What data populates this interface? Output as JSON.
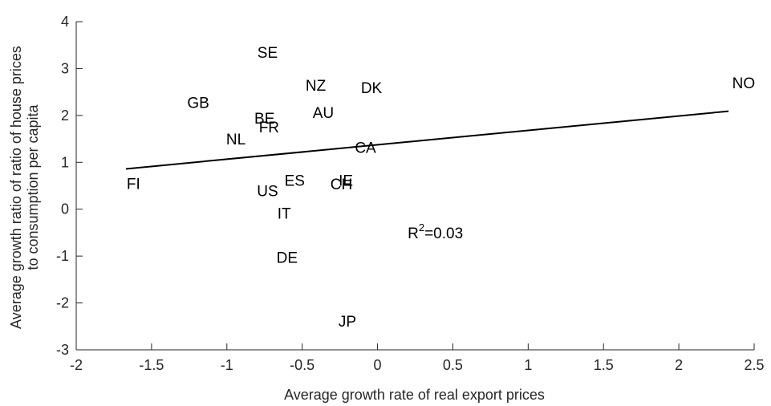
{
  "chart_data": {
    "type": "scatter",
    "title": "",
    "xlabel": "Average growth rate of real export prices",
    "ylabel_lines": [
      "Average growth ratio of ratio of house prices",
      "to consumption per capita"
    ],
    "xlim": [
      -2,
      2.5
    ],
    "ylim": [
      -3,
      4
    ],
    "x_ticks": [
      -2,
      -1.5,
      -1,
      -0.5,
      0,
      0.5,
      1,
      1.5,
      2,
      2.5
    ],
    "x_tick_labels": [
      "-2",
      "-1.5",
      "-1",
      "-0.5",
      "0",
      "0.5",
      "1",
      "1.5",
      "2",
      "2.5"
    ],
    "y_ticks": [
      -3,
      -2,
      -1,
      0,
      1,
      2,
      3,
      4
    ],
    "y_tick_labels": [
      "-3",
      "-2",
      "-1",
      "0",
      "1",
      "2",
      "3",
      "4"
    ],
    "grid": false,
    "marker": "text labels",
    "points": [
      {
        "label": "SE",
        "x": -0.73,
        "y": 3.35
      },
      {
        "label": "NZ",
        "x": -0.41,
        "y": 2.65
      },
      {
        "label": "DK",
        "x": -0.04,
        "y": 2.6
      },
      {
        "label": "NO",
        "x": 2.43,
        "y": 2.7
      },
      {
        "label": "GB",
        "x": -1.19,
        "y": 2.28
      },
      {
        "label": "AU",
        "x": -0.36,
        "y": 2.07
      },
      {
        "label": "BE",
        "x": -0.75,
        "y": 1.95
      },
      {
        "label": "FR",
        "x": -0.72,
        "y": 1.76
      },
      {
        "label": "NL",
        "x": -0.94,
        "y": 1.5
      },
      {
        "label": "CA",
        "x": -0.08,
        "y": 1.32
      },
      {
        "label": "FI",
        "x": -1.62,
        "y": 0.55
      },
      {
        "label": "ES",
        "x": -0.55,
        "y": 0.62
      },
      {
        "label": "IE",
        "x": -0.21,
        "y": 0.62
      },
      {
        "label": "CH",
        "x": -0.24,
        "y": 0.54
      },
      {
        "label": "US",
        "x": -0.73,
        "y": 0.4
      },
      {
        "label": "IT",
        "x": -0.62,
        "y": -0.08
      },
      {
        "label": "DE",
        "x": -0.6,
        "y": -1.02
      },
      {
        "label": "JP",
        "x": -0.2,
        "y": -2.38
      }
    ],
    "fit_line": {
      "x": [
        -1.67,
        2.33
      ],
      "y": [
        0.86,
        2.09
      ]
    },
    "annotation": {
      "prefix": "R",
      "superscript": "2",
      "suffix": "=0.03",
      "x": 0.2,
      "y": -0.5
    },
    "colors": {
      "text": "#000000",
      "axis": "#262626",
      "line": "#000000",
      "background": "#ffffff"
    }
  }
}
